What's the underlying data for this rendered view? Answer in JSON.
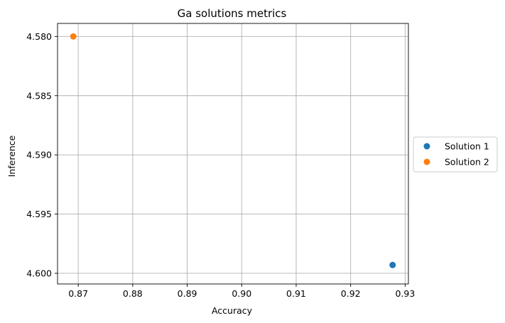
{
  "chart_data": {
    "type": "scatter",
    "title": "Ga solutions metrics",
    "xlabel": "Accuracy",
    "ylabel": "Inference",
    "xlim": [
      0.8662,
      0.9306
    ],
    "ylim": [
      4.5789,
      4.6009
    ],
    "y_inverted": true,
    "grid": true,
    "legend_position": "center-right-outside",
    "xticks": [
      0.87,
      0.88,
      0.89,
      0.9,
      0.91,
      0.92,
      0.93
    ],
    "xtick_labels": [
      "0.87",
      "0.88",
      "0.89",
      "0.90",
      "0.91",
      "0.92",
      "0.93"
    ],
    "yticks": [
      4.58,
      4.585,
      4.59,
      4.595,
      4.6
    ],
    "ytick_labels": [
      "4.580",
      "4.585",
      "4.590",
      "4.595",
      "4.600"
    ],
    "series": [
      {
        "name": "Solution 1",
        "color": "#1f77b4",
        "points": [
          {
            "x": 0.9277,
            "y": 4.5993
          }
        ]
      },
      {
        "name": "Solution 2",
        "color": "#ff7f0e",
        "points": [
          {
            "x": 0.8691,
            "y": 4.58
          }
        ]
      }
    ]
  }
}
